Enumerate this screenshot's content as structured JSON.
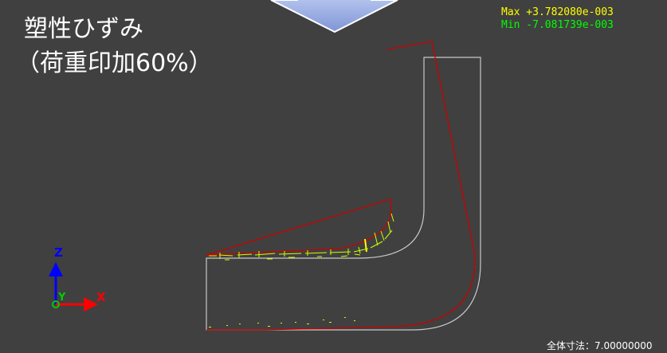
{
  "title": {
    "line1": "塑性ひずみ",
    "line2": "（荷重印加60%）"
  },
  "legend": {
    "max_label": "Max +3.782080e-003",
    "min_label": "Min -7.081739e-003",
    "max_color": "#ffff00",
    "min_color": "#00ff00"
  },
  "dimension": {
    "label": "全体寸法：7.00000000"
  },
  "axes": {
    "z_label": "Z",
    "y_label": "Y",
    "x_label": "X",
    "z_color": "#0000ff",
    "y_color": "#00cc00",
    "x_color": "#ff0000"
  },
  "colors": {
    "background": "#404040",
    "undeformed_outline": "#c8c8c8",
    "deformed_outline": "#cc0000",
    "strain_marks": "#ccff00",
    "arrow_fill": "#9aaee0"
  }
}
